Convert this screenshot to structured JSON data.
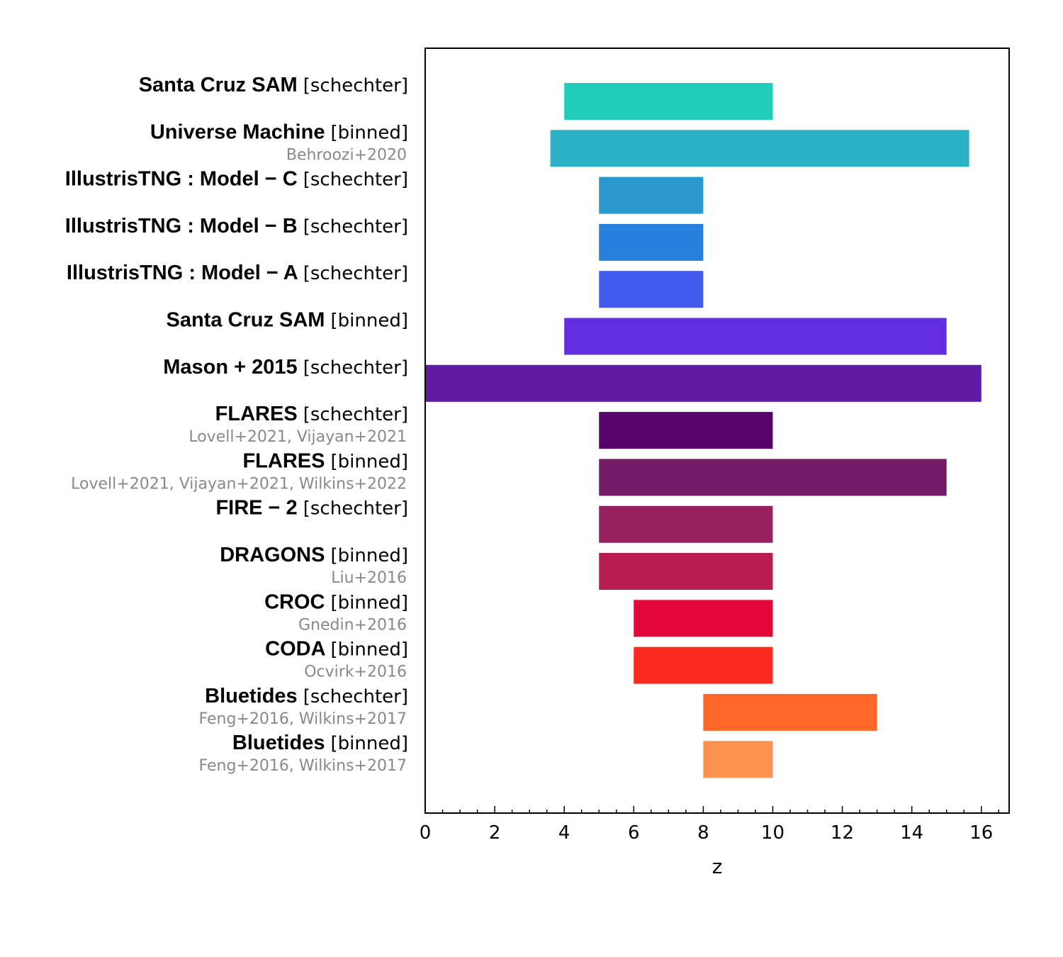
{
  "chart_data": {
    "type": "bar",
    "orientation": "horizontal",
    "xlabel": "z",
    "xlim": [
      0,
      16.8
    ],
    "xticks": [
      0,
      2,
      4,
      6,
      8,
      10,
      12,
      14,
      16
    ],
    "rows": [
      {
        "name": "Santa Cruz SAM",
        "kind": "[schechter]",
        "ref": "",
        "z_min": 4,
        "z_max": 10,
        "color": "#1fcbbd"
      },
      {
        "name": "Universe Machine",
        "kind": "[binned]",
        "ref": "Behroozi+2020",
        "z_min": 3.6,
        "z_max": 15.65,
        "color": "#2bb2c6"
      },
      {
        "name": "IllustrisTNG : Model − C",
        "kind": "[schechter]",
        "ref": "",
        "z_min": 5,
        "z_max": 8,
        "color": "#2898cd"
      },
      {
        "name": "IllustrisTNG : Model − B",
        "kind": "[schechter]",
        "ref": "",
        "z_min": 5,
        "z_max": 8,
        "color": "#2880de"
      },
      {
        "name": "IllustrisTNG : Model − A",
        "kind": "[schechter]",
        "ref": "",
        "z_min": 5,
        "z_max": 8,
        "color": "#465bef"
      },
      {
        "name": "Santa Cruz SAM",
        "kind": "[binned]",
        "ref": "",
        "z_min": 4,
        "z_max": 15,
        "color": "#632edf"
      },
      {
        "name": "Mason + 2015",
        "kind": "[schechter]",
        "ref": "",
        "z_min": 0,
        "z_max": 16,
        "color": "#5f1ba6"
      },
      {
        "name": "FLARES",
        "kind": "[schechter]",
        "ref": "Lovell+2021, Vijayan+2021",
        "z_min": 5,
        "z_max": 10,
        "color": "#55056b"
      },
      {
        "name": "FLARES",
        "kind": "[binned]",
        "ref": "Lovell+2021, Vijayan+2021, Wilkins+2022",
        "z_min": 5,
        "z_max": 15,
        "color": "#741b67"
      },
      {
        "name": "FIRE − 2",
        "kind": "[schechter]",
        "ref": "",
        "z_min": 5,
        "z_max": 10,
        "color": "#962060"
      },
      {
        "name": "DRAGONS",
        "kind": "[binned]",
        "ref": "Liu+2016",
        "z_min": 5,
        "z_max": 10,
        "color": "#b91c50"
      },
      {
        "name": "CROC",
        "kind": "[binned]",
        "ref": "Gnedin+2016",
        "z_min": 6,
        "z_max": 10,
        "color": "#e2063b"
      },
      {
        "name": "CODA",
        "kind": "[binned]",
        "ref": "Ocvirk+2016",
        "z_min": 6,
        "z_max": 10,
        "color": "#fa2b1e"
      },
      {
        "name": "Bluetides",
        "kind": "[schechter]",
        "ref": "Feng+2016, Wilkins+2017",
        "z_min": 8,
        "z_max": 13,
        "color": "#ff672a"
      },
      {
        "name": "Bluetides",
        "kind": "[binned]",
        "ref": "Feng+2016, Wilkins+2017",
        "z_min": 8,
        "z_max": 10,
        "color": "#fe9150"
      }
    ]
  }
}
